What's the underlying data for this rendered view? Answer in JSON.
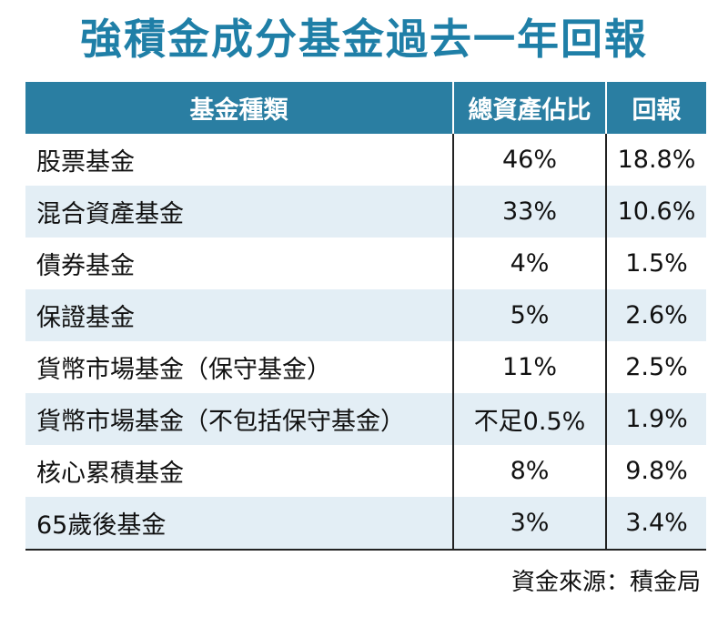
{
  "title": "強積金成分基金過去一年回報",
  "table": {
    "headers": [
      "基金種類",
      "總資產佔比",
      "回報"
    ],
    "rows": [
      {
        "fund": "股票基金",
        "share": "46%",
        "return": "18.8%"
      },
      {
        "fund": "混合資產基金",
        "share": "33%",
        "return": "10.6%"
      },
      {
        "fund": "債券基金",
        "share": "4%",
        "return": "1.5%"
      },
      {
        "fund": "保證基金",
        "share": "5%",
        "return": "2.6%"
      },
      {
        "fund": "貨幣市場基金（保守基金）",
        "share": "11%",
        "return": "2.5%"
      },
      {
        "fund": "貨幣市場基金（不包括保守基金）",
        "share": "不足0.5%",
        "return": "1.9%"
      },
      {
        "fund": "核心累積基金",
        "share": "8%",
        "return": "9.8%"
      },
      {
        "fund": "65歲後基金",
        "share": "3%",
        "return": "3.4%"
      }
    ]
  },
  "source": "資金來源：積金局",
  "colors": {
    "title": "#1f7fa7",
    "header_bg": "#2a7ea2",
    "stripe_bg": "#e3eef5"
  }
}
